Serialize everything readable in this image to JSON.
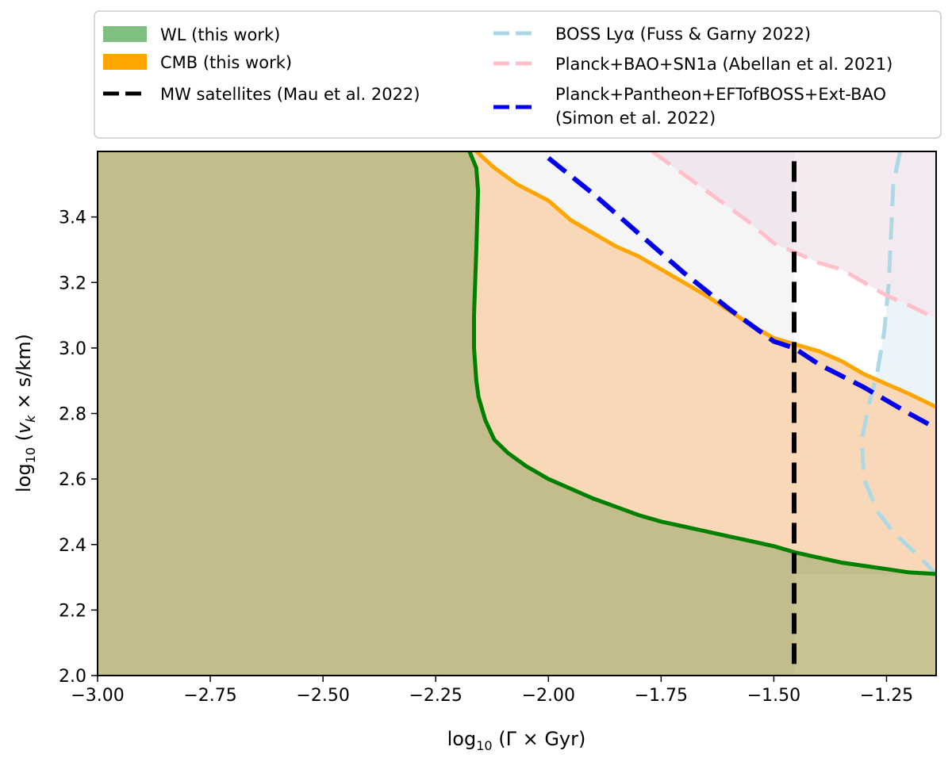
{
  "chart_data": {
    "type": "area",
    "title": "",
    "xlabel": "log10(Γ × Gyr)",
    "ylabel": "log10(v_k × s/km)",
    "xlim": [
      -3.0,
      -1.14
    ],
    "ylim": [
      2.0,
      3.6
    ],
    "x_ticks": [
      -3.0,
      -2.75,
      -2.5,
      -2.25,
      -2.0,
      -1.75,
      -1.5,
      -1.25
    ],
    "x_tick_labels": [
      "−3.00",
      "−2.75",
      "−2.50",
      "−2.25",
      "−2.00",
      "−1.75",
      "−1.50",
      "−1.25"
    ],
    "y_ticks": [
      2.0,
      2.2,
      2.4,
      2.6,
      2.8,
      3.0,
      3.2,
      3.4
    ],
    "y_tick_labels": [
      "2.0",
      "2.2",
      "2.4",
      "2.6",
      "2.8",
      "3.0",
      "3.2",
      "3.4"
    ],
    "grid": false,
    "legend_position": "top (above plot, two columns)",
    "series": [
      {
        "name": "WL (this work)",
        "kind": "filled-region",
        "color": "#008000",
        "fill": "#c2bd8a",
        "boundary": [
          [
            -2.175,
            3.6
          ],
          [
            -2.16,
            3.55
          ],
          [
            -2.156,
            3.48
          ],
          [
            -2.16,
            3.3
          ],
          [
            -2.165,
            3.1
          ],
          [
            -2.165,
            3.0
          ],
          [
            -2.16,
            2.9
          ],
          [
            -2.155,
            2.85
          ],
          [
            -2.14,
            2.78
          ],
          [
            -2.12,
            2.72
          ],
          [
            -2.09,
            2.68
          ],
          [
            -2.05,
            2.64
          ],
          [
            -2.0,
            2.6
          ],
          [
            -1.95,
            2.57
          ],
          [
            -1.9,
            2.54
          ],
          [
            -1.85,
            2.515
          ],
          [
            -1.8,
            2.49
          ],
          [
            -1.75,
            2.47
          ],
          [
            -1.7,
            2.455
          ],
          [
            -1.65,
            2.44
          ],
          [
            -1.6,
            2.425
          ],
          [
            -1.55,
            2.41
          ],
          [
            -1.5,
            2.395
          ],
          [
            -1.45,
            2.375
          ],
          [
            -1.4,
            2.36
          ],
          [
            -1.35,
            2.345
          ],
          [
            -1.3,
            2.335
          ],
          [
            -1.25,
            2.325
          ],
          [
            -1.2,
            2.315
          ],
          [
            -1.14,
            2.31
          ]
        ]
      },
      {
        "name": "CMB (this work)",
        "kind": "filled-region",
        "color": "#ffa500",
        "fill": "#f9d6b4",
        "boundary": [
          [
            -2.16,
            3.6
          ],
          [
            -2.12,
            3.55
          ],
          [
            -2.07,
            3.5
          ],
          [
            -2.0,
            3.45
          ],
          [
            -1.95,
            3.39
          ],
          [
            -1.9,
            3.35
          ],
          [
            -1.85,
            3.31
          ],
          [
            -1.8,
            3.28
          ],
          [
            -1.75,
            3.24
          ],
          [
            -1.7,
            3.2
          ],
          [
            -1.65,
            3.16
          ],
          [
            -1.6,
            3.115
          ],
          [
            -1.55,
            3.07
          ],
          [
            -1.5,
            3.03
          ],
          [
            -1.45,
            3.01
          ],
          [
            -1.4,
            2.99
          ],
          [
            -1.35,
            2.96
          ],
          [
            -1.3,
            2.92
          ],
          [
            -1.25,
            2.89
          ],
          [
            -1.2,
            2.86
          ],
          [
            -1.14,
            2.82
          ]
        ]
      },
      {
        "name": "MW satellites (Mau et al. 2022)",
        "kind": "vertical-dashed",
        "color": "#000000",
        "x": -1.455,
        "y_range": [
          2.03,
          3.57
        ]
      },
      {
        "name": "BOSS Lyα (Fuss & Garny 2022)",
        "kind": "dashed-boundary",
        "color": "#add8e6",
        "fill": "#ebf5f9",
        "points": [
          [
            -1.22,
            3.6
          ],
          [
            -1.235,
            3.5
          ],
          [
            -1.24,
            3.35
          ],
          [
            -1.245,
            3.2
          ],
          [
            -1.255,
            3.05
          ],
          [
            -1.27,
            2.93
          ],
          [
            -1.29,
            2.82
          ],
          [
            -1.305,
            2.72
          ],
          [
            -1.3,
            2.6
          ],
          [
            -1.27,
            2.5
          ],
          [
            -1.23,
            2.43
          ],
          [
            -1.19,
            2.38
          ],
          [
            -1.14,
            2.31
          ]
        ]
      },
      {
        "name": "Planck+BAO+SN1a (Abellan et al. 2021)",
        "kind": "dashed-boundary",
        "color": "#ffc0cb",
        "fill": "#f4e6ee",
        "points": [
          [
            -1.77,
            3.6
          ],
          [
            -1.7,
            3.53
          ],
          [
            -1.63,
            3.46
          ],
          [
            -1.56,
            3.39
          ],
          [
            -1.5,
            3.32
          ],
          [
            -1.45,
            3.29
          ],
          [
            -1.4,
            3.26
          ],
          [
            -1.35,
            3.24
          ],
          [
            -1.3,
            3.2
          ],
          [
            -1.25,
            3.16
          ],
          [
            -1.2,
            3.13
          ],
          [
            -1.14,
            3.09
          ]
        ]
      },
      {
        "name": "Planck+Pantheon+EFTofBOSS+Ext-BAO (Simon et al. 2022)",
        "kind": "dashed-line",
        "color": "#0000ee",
        "points": [
          [
            -2.0,
            3.58
          ],
          [
            -1.9,
            3.47
          ],
          [
            -1.8,
            3.35
          ],
          [
            -1.7,
            3.23
          ],
          [
            -1.6,
            3.12
          ],
          [
            -1.5,
            3.02
          ],
          [
            -1.455,
            3.0
          ],
          [
            -1.4,
            2.95
          ],
          [
            -1.3,
            2.88
          ],
          [
            -1.2,
            2.8
          ],
          [
            -1.14,
            2.755
          ]
        ]
      }
    ]
  }
}
